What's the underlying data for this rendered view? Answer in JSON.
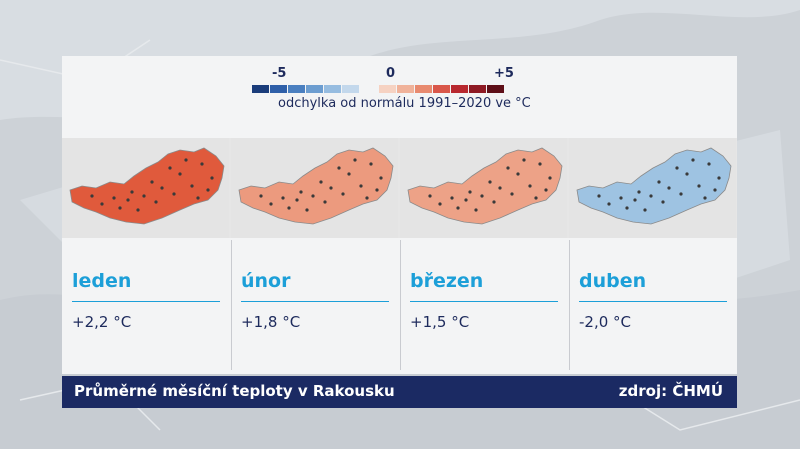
{
  "legend": {
    "tick_min": "-5",
    "tick_zero": "0",
    "tick_max": "+5",
    "caption": "odchylka od normálu 1991–2020 ve °C",
    "colors": [
      "#1a3c7a",
      "#2e5fa8",
      "#4a7fc0",
      "#6c9dd0",
      "#96bce0",
      "#c3d8ec",
      "#f6d2c2",
      "#f0b29a",
      "#e88a6f",
      "#d9574a",
      "#b8282f",
      "#8e1a24",
      "#5e0f18"
    ]
  },
  "months": [
    {
      "name": "leden",
      "value": "+2,2 °C",
      "tint": "#e05a3c"
    },
    {
      "name": "únor",
      "value": "+1,8 °C",
      "tint": "#ec9a7e"
    },
    {
      "name": "březen",
      "value": "+1,5 °C",
      "tint": "#eda287"
    },
    {
      "name": "duben",
      "value": "-2,0 °C",
      "tint": "#9ec3e2"
    }
  ],
  "footer": {
    "title": "Průměrné měsíční teploty v Rakousku",
    "source": "zdroj: ČHMÚ"
  }
}
